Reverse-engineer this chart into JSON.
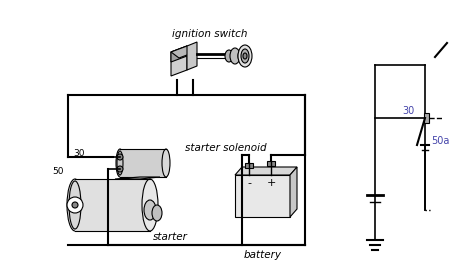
{
  "background_color": "#ffffff",
  "text_color": "#000000",
  "blue_text_color": "#4444aa",
  "line_color": "#000000",
  "gray_fill": "#cccccc",
  "light_gray": "#e8e8e8",
  "labels": {
    "ignition_switch": "ignition switch",
    "starter_solenoid": "starter solenoid",
    "starter": "starter",
    "battery": "battery",
    "num_30": "30",
    "num_50": "50",
    "num_30r": "30",
    "num_50a": "50a"
  },
  "fig_width": 4.74,
  "fig_height": 2.74,
  "dpi": 100
}
